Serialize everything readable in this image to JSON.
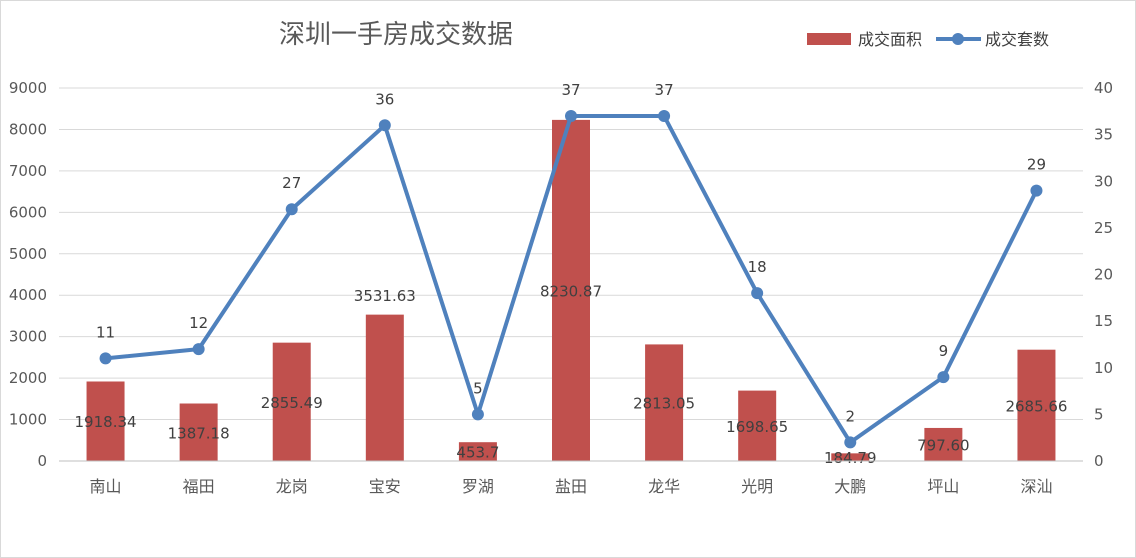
{
  "chart_data": {
    "type": "bar",
    "title": "深圳一手房成交数据",
    "categories": [
      "南山",
      "福田",
      "龙岗",
      "宝安",
      "罗湖",
      "盐田",
      "龙华",
      "光明",
      "大鹏",
      "坪山",
      "深汕"
    ],
    "series": [
      {
        "name": "成交面积",
        "type": "bar",
        "axis": "left",
        "color": "#C0504D",
        "values": [
          1918.34,
          1387.18,
          2855.49,
          3531.63,
          453.7,
          8230.87,
          2813.05,
          1698.65,
          184.79,
          797.6,
          2685.66
        ],
        "labels": [
          "1918.34",
          "1387.18",
          "2855.49",
          "3531.63",
          "453.7",
          "8230.87",
          "2813.05",
          "1698.65",
          "184.79",
          "797.60",
          "2685.66"
        ]
      },
      {
        "name": "成交套数",
        "type": "line",
        "axis": "right",
        "color": "#4F81BD",
        "values": [
          11,
          12,
          27,
          36,
          5,
          37,
          37,
          18,
          2,
          9,
          29
        ],
        "labels": [
          "11",
          "12",
          "27",
          "36",
          "5",
          "37",
          "37",
          "18",
          "2",
          "9",
          "29"
        ]
      }
    ],
    "y_left": {
      "min": 0,
      "max": 9000,
      "ticks": [
        "0",
        "1000",
        "2000",
        "3000",
        "4000",
        "5000",
        "6000",
        "7000",
        "8000",
        "9000"
      ]
    },
    "y_right": {
      "min": 0,
      "max": 40,
      "ticks": [
        "0",
        "5",
        "10",
        "15",
        "20",
        "25",
        "30",
        "35",
        "40"
      ]
    },
    "grid": true,
    "legend_position": "top-right"
  }
}
